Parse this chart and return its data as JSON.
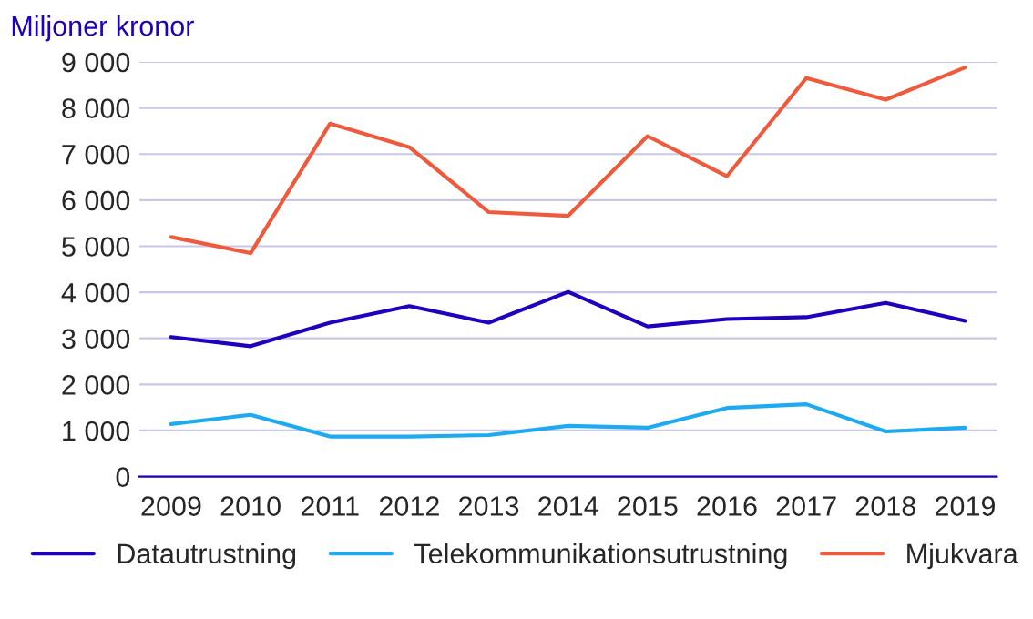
{
  "chart_data": {
    "type": "line",
    "ylabel": "Miljoner kronor",
    "categories": [
      "2009",
      "2010",
      "2011",
      "2012",
      "2013",
      "2014",
      "2015",
      "2016",
      "2017",
      "2018",
      "2019"
    ],
    "series": [
      {
        "name": "Datautrustning",
        "color": "#1e00be",
        "values": [
          3030,
          2830,
          3340,
          3700,
          3340,
          4010,
          3260,
          3420,
          3460,
          3770,
          3380
        ]
      },
      {
        "name": "Telekommunikationsutrustning",
        "color": "#1eaaf0",
        "values": [
          1140,
          1340,
          870,
          870,
          900,
          1100,
          1060,
          1490,
          1570,
          980,
          1060
        ]
      },
      {
        "name": "Mjukvara",
        "color": "#f05a3c",
        "values": [
          5200,
          4850,
          7660,
          7150,
          5740,
          5660,
          7390,
          6520,
          8650,
          8180,
          8880
        ]
      }
    ],
    "ylim": [
      0,
      9000
    ],
    "yticks": [
      0,
      {
        "value": 1000,
        "label": "1 000"
      },
      {
        "value": 2000,
        "label": "2 000"
      },
      {
        "value": 3000,
        "label": "3 000"
      },
      {
        "value": 4000,
        "label": "4 000"
      },
      {
        "value": 5000,
        "label": "5 000"
      },
      {
        "value": 6000,
        "label": "6 000"
      },
      {
        "value": 7000,
        "label": "7 000"
      },
      {
        "value": 8000,
        "label": "8 000"
      },
      {
        "value": 9000,
        "label": "9 000"
      }
    ],
    "grid": "y",
    "legend": "bottom",
    "marker": "none",
    "line_style": "solid"
  }
}
